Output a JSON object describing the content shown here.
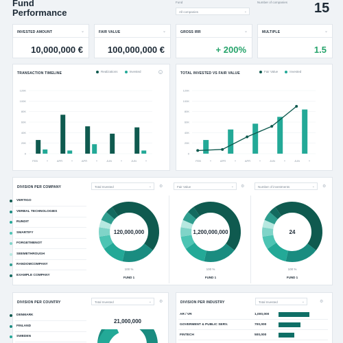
{
  "header": {
    "title_line1": "Fund",
    "title_line2": "Performance",
    "fund_label": "Fund",
    "fund_select": "All companies",
    "companies_label": "Number of companies",
    "companies_value": "15"
  },
  "kpis": [
    {
      "label": "INVESTED AMOUNT",
      "value": "10,000,000 €",
      "color": "#1d2a36"
    },
    {
      "label": "FAIR VALUE",
      "value": "100,000,000 €",
      "color": "#1d2a36"
    },
    {
      "label": "GROSS IRR",
      "value": "+ 200%",
      "color": "#25a36a"
    },
    {
      "label": "MULTIPLE",
      "value": "1.5",
      "color": "#25a36a"
    }
  ],
  "timeline": {
    "title": "TRANSACTION TIMELINE",
    "legend": [
      "Realizations",
      "Invested"
    ]
  },
  "total": {
    "title": "TOTAL INVESTED VS FAIR VALUE",
    "legend": [
      "Fair Value",
      "Invested"
    ]
  },
  "colors": {
    "dark": "#0f5a4f",
    "teal": "#23a997",
    "mid": "#1a8c80",
    "light": "#7fd4c8"
  },
  "chart_data": [
    {
      "type": "bar",
      "title": "TRANSACTION TIMELINE",
      "x_ticks": [
        "FEB",
        "APR",
        "APR",
        "JUN",
        "JUN"
      ],
      "y_ticks": [
        "0",
        "20K",
        "40K",
        "60K",
        "80K",
        "100K",
        "120K"
      ],
      "ylim": [
        0,
        120000
      ],
      "series": [
        {
          "name": "Realizations",
          "values": [
            26000,
            74000,
            52000,
            38000,
            50000
          ]
        },
        {
          "name": "Invested",
          "values": [
            8000,
            6000,
            18000,
            0,
            6000
          ]
        }
      ]
    },
    {
      "type": "bar",
      "title": "TOTAL INVESTED VS FAIR VALUE",
      "x_ticks": [
        "FEB",
        "APR",
        "APR",
        "JUN",
        "JUN"
      ],
      "y_ticks": [
        "0",
        "20K",
        "40K",
        "60K",
        "80K",
        "100K",
        "120K"
      ],
      "ylim": [
        0,
        120000
      ],
      "series": [
        {
          "name": "Invested",
          "values": [
            26000,
            46000,
            57000,
            70000,
            84000
          ]
        },
        {
          "name": "Fair Value",
          "values": [
            6000,
            8000,
            32000,
            52000,
            90000
          ]
        }
      ]
    }
  ],
  "division_company": {
    "title": "DIVISION PER COMPANY",
    "selects": [
      "Total Invested",
      "Fair Value",
      "Number of investments"
    ],
    "companies": [
      "VERTIGO",
      "VERBAL TECHNOLOGIES",
      "RUNDIT",
      "SMARTIFY",
      "FORGETMENOT",
      "SEEMETHROUGH",
      "RANDOMCOMPANY",
      "EXAMPLE COMPANY"
    ],
    "donuts": [
      {
        "center": "120,000,000",
        "percent": "100 %",
        "fund": "FUND 1"
      },
      {
        "center": "1,200,000,000",
        "percent": "100 %",
        "fund": "FUND 1"
      },
      {
        "center": "24",
        "percent": "100 %",
        "fund": "FUND 1"
      }
    ]
  },
  "division_country": {
    "title": "DIVISION PER COUNTRY",
    "select": "Total Invested",
    "countries": [
      "DENMARK",
      "FINLAND",
      "SWEDEN"
    ],
    "center": "21,000,000"
  },
  "division_industry": {
    "title": "DIVISION PER INDUSTRY",
    "select": "Total Invested",
    "rows": [
      {
        "label": "AR / VR",
        "value": "1,000,000",
        "fraction": 1.0
      },
      {
        "label": "GOVERMENT & PUBLIC SERV.",
        "value": "700,000",
        "fraction": 0.7
      },
      {
        "label": "FINTECH",
        "value": "500,000",
        "fraction": 0.5
      }
    ]
  }
}
